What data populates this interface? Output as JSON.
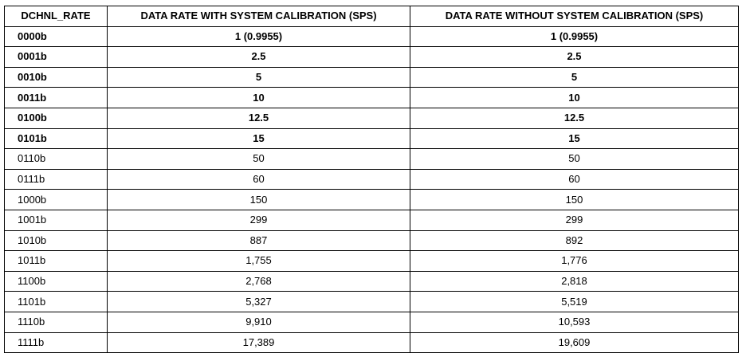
{
  "table": {
    "headers": [
      "DCHNL_RATE",
      "DATA RATE WITH SYSTEM CALIBRATION (SPS)",
      "DATA RATE WITHOUT SYSTEM CALIBRATION (SPS)"
    ],
    "rows": [
      {
        "code": "0000b",
        "with_cal": "1 (0.9955)",
        "without_cal": "1 (0.9955)",
        "bold": true
      },
      {
        "code": "0001b",
        "with_cal": "2.5",
        "without_cal": "2.5",
        "bold": true
      },
      {
        "code": "0010b",
        "with_cal": "5",
        "without_cal": "5",
        "bold": true
      },
      {
        "code": "0011b",
        "with_cal": "10",
        "without_cal": "10",
        "bold": true
      },
      {
        "code": "0100b",
        "with_cal": "12.5",
        "without_cal": "12.5",
        "bold": true
      },
      {
        "code": "0101b",
        "with_cal": "15",
        "without_cal": "15",
        "bold": true
      },
      {
        "code": "0110b",
        "with_cal": "50",
        "without_cal": "50",
        "bold": false
      },
      {
        "code": "0111b",
        "with_cal": "60",
        "without_cal": "60",
        "bold": false
      },
      {
        "code": "1000b",
        "with_cal": "150",
        "without_cal": "150",
        "bold": false
      },
      {
        "code": "1001b",
        "with_cal": "299",
        "without_cal": "299",
        "bold": false
      },
      {
        "code": "1010b",
        "with_cal": "887",
        "without_cal": "892",
        "bold": false
      },
      {
        "code": "1011b",
        "with_cal": "1,755",
        "without_cal": "1,776",
        "bold": false
      },
      {
        "code": "1100b",
        "with_cal": "2,768",
        "without_cal": "2,818",
        "bold": false
      },
      {
        "code": "1101b",
        "with_cal": "5,327",
        "without_cal": "5,519",
        "bold": false
      },
      {
        "code": "1110b",
        "with_cal": "9,910",
        "without_cal": "10,593",
        "bold": false
      },
      {
        "code": "1111b",
        "with_cal": "17,389",
        "without_cal": "19,609",
        "bold": false
      }
    ]
  },
  "colors": {
    "text": "#000000",
    "border": "#000000",
    "background": "#ffffff",
    "heading_fragment": "#1f9ad6"
  }
}
